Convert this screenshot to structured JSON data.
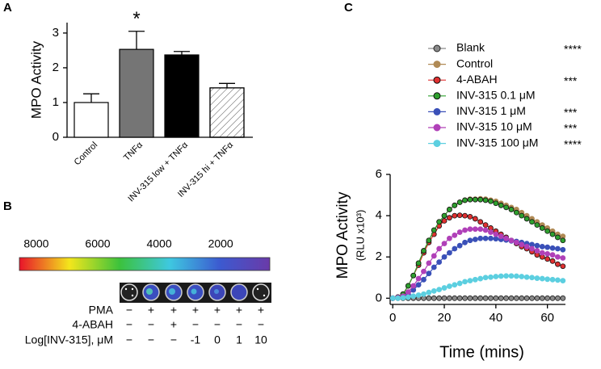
{
  "panel_labels": [
    "A",
    "B",
    "C"
  ],
  "chart_data": [
    {
      "type": "bar",
      "ylabel": "MPO Activity",
      "categories": [
        "Control",
        "TNFα",
        "INV-315 low + TNFα",
        "INV-315 hi + TNFα"
      ],
      "values": [
        1.0,
        2.53,
        2.37,
        1.42
      ],
      "errors": [
        0.25,
        0.52,
        0.1,
        0.13
      ],
      "colors": [
        "#ffffff",
        "#757575",
        "#000000",
        "#ffffff"
      ],
      "hatch": [
        false,
        false,
        false,
        true
      ],
      "value_annotations": [
        null,
        "*",
        null,
        null
      ],
      "ylim": [
        0,
        3.3
      ],
      "yticks": [
        0,
        1,
        2,
        3
      ]
    },
    {
      "type": "line",
      "xlabel": "Time (mins)",
      "ylabel": "MPO Activity",
      "ylabel_sub": "(RLU x10³)",
      "x": [
        0,
        2,
        4,
        6,
        8,
        10,
        12,
        14,
        16,
        18,
        20,
        22,
        24,
        26,
        28,
        30,
        32,
        34,
        36,
        38,
        40,
        42,
        44,
        46,
        48,
        50,
        52,
        54,
        56,
        58,
        60,
        62,
        64,
        66
      ],
      "xlim": [
        -1,
        67
      ],
      "xticks": [
        0,
        20,
        40,
        60
      ],
      "ylim": [
        -0.3,
        6
      ],
      "yticks": [
        0,
        2,
        4,
        6
      ],
      "series": [
        {
          "name": "Blank",
          "color": "#8a8a8a",
          "edgecolor": "#222222",
          "significance": "****",
          "values": [
            0,
            0,
            0,
            0,
            0,
            0,
            0,
            0,
            0,
            0,
            0,
            0,
            0,
            0,
            0,
            0,
            0,
            0,
            0,
            0,
            0,
            0,
            0,
            0,
            0,
            0,
            0,
            0,
            0,
            0,
            0,
            0,
            0,
            0
          ]
        },
        {
          "name": "Control",
          "color": "#b08a55",
          "values": [
            0,
            0.05,
            0.2,
            0.6,
            1.1,
            1.7,
            2.3,
            2.8,
            3.3,
            3.7,
            4.0,
            4.3,
            4.5,
            4.65,
            4.75,
            4.8,
            4.8,
            4.82,
            4.8,
            4.75,
            4.7,
            4.6,
            4.5,
            4.4,
            4.3,
            4.15,
            4.0,
            3.85,
            3.7,
            3.55,
            3.4,
            3.25,
            3.1,
            3.0
          ]
        },
        {
          "name": "4-ABAH",
          "color": "#e03030",
          "edgecolor": "#111111",
          "significance": "***",
          "values": [
            0,
            0.05,
            0.2,
            0.6,
            1.1,
            1.6,
            2.2,
            2.7,
            3.1,
            3.5,
            3.75,
            3.9,
            4.0,
            4.02,
            4.0,
            3.95,
            3.85,
            3.7,
            3.55,
            3.4,
            3.25,
            3.1,
            2.95,
            2.8,
            2.65,
            2.5,
            2.4,
            2.25,
            2.1,
            2.0,
            1.9,
            1.8,
            1.65,
            1.55
          ]
        },
        {
          "name": "INV-315 0.1 μM",
          "color": "#2ea02e",
          "edgecolor": "#111111",
          "values": [
            0,
            0.05,
            0.2,
            0.6,
            1.1,
            1.7,
            2.3,
            2.8,
            3.3,
            3.7,
            4.0,
            4.3,
            4.5,
            4.65,
            4.75,
            4.78,
            4.78,
            4.78,
            4.75,
            4.7,
            4.6,
            4.5,
            4.4,
            4.3,
            4.15,
            4.0,
            3.85,
            3.7,
            3.55,
            3.4,
            3.25,
            3.1,
            2.95,
            2.8
          ]
        },
        {
          "name": "INV-315 1 μM",
          "color": "#3a50b8",
          "significance": "***",
          "values": [
            0,
            0.02,
            0.08,
            0.2,
            0.4,
            0.65,
            0.9,
            1.2,
            1.5,
            1.75,
            2.0,
            2.2,
            2.4,
            2.55,
            2.7,
            2.8,
            2.85,
            2.9,
            2.9,
            2.9,
            2.88,
            2.85,
            2.82,
            2.78,
            2.75,
            2.7,
            2.65,
            2.6,
            2.55,
            2.5,
            2.47,
            2.43,
            2.4,
            2.35
          ]
        },
        {
          "name": "INV-315 10 μM",
          "color": "#b040b8",
          "significance": "***",
          "values": [
            0,
            0.03,
            0.1,
            0.3,
            0.6,
            0.95,
            1.3,
            1.7,
            2.05,
            2.4,
            2.65,
            2.9,
            3.05,
            3.2,
            3.3,
            3.35,
            3.35,
            3.35,
            3.3,
            3.2,
            3.1,
            3.0,
            2.9,
            2.8,
            2.7,
            2.6,
            2.5,
            2.4,
            2.3,
            2.2,
            2.15,
            2.1,
            2.0,
            1.95
          ]
        },
        {
          "name": "INV-315 100 μM",
          "color": "#5ccfe0",
          "significance": "****",
          "values": [
            0,
            0,
            0.02,
            0.05,
            0.1,
            0.15,
            0.2,
            0.28,
            0.35,
            0.42,
            0.5,
            0.58,
            0.65,
            0.72,
            0.8,
            0.85,
            0.9,
            0.95,
            1.0,
            1.02,
            1.05,
            1.07,
            1.08,
            1.08,
            1.07,
            1.05,
            1.02,
            1.0,
            0.97,
            0.95,
            0.92,
            0.9,
            0.88,
            0.85
          ]
        }
      ]
    }
  ],
  "luminescence_panel": {
    "scale_ticks": [
      8000,
      6000,
      4000,
      2000
    ],
    "scale_lim": [
      8550,
      400
    ],
    "scale_colors": [
      "#e8142a",
      "#f3e61c",
      "#3cc23c",
      "#3ec8e0",
      "#3c5ad0",
      "#6a3aa8"
    ],
    "rows": [
      {
        "label": "PMA",
        "cells": [
          "−",
          "+",
          "+",
          "+",
          "+",
          "+",
          "+"
        ]
      },
      {
        "label": "4-ABAH",
        "cells": [
          "−",
          "−",
          "+",
          "−",
          "−",
          "−",
          "−"
        ]
      },
      {
        "label": "Log[INV-315], μM",
        "cells": [
          "−",
          "−",
          "−",
          "-1",
          "0",
          "1",
          "10"
        ]
      }
    ]
  }
}
